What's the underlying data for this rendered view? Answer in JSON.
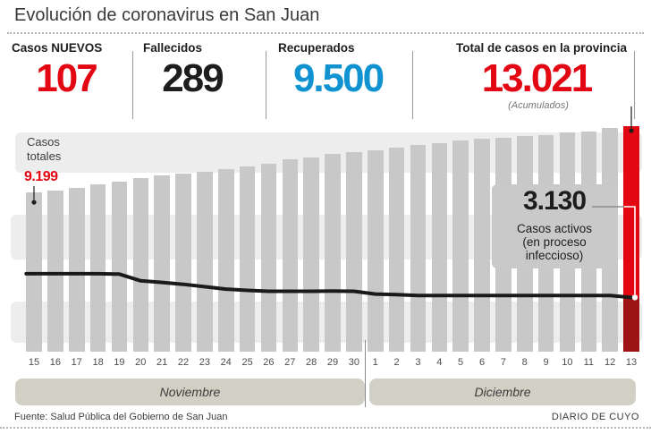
{
  "title": "Evolución de coronavirus en San Juan",
  "colors": {
    "accent_red": "#e30613",
    "dark_red": "#9e1315",
    "accent_blue": "#1193d2",
    "bar_gray": "#c8c8c8",
    "line_black": "#1a1a1a",
    "stripe_gray": "#ededed",
    "band_beige": "#d2cfc5",
    "text_dark": "#1d1d1b"
  },
  "stats": [
    {
      "label": "Casos NUEVOS",
      "value": "107",
      "color": "#e30613"
    },
    {
      "label": "Fallecidos",
      "value": "289",
      "color": "#1d1d1b"
    },
    {
      "label": "Recuperados",
      "value": "9.500",
      "color": "#1193d2"
    },
    {
      "label": "Total de casos en la provincia",
      "value": "13.021",
      "note": "(Acumulados)",
      "color": "#e30613"
    }
  ],
  "chart": {
    "totales_label": "Casos\ntotales",
    "totales_value": "9.199",
    "activos_value": "3.130",
    "activos_caption": "Casos activos\n(en proceso\ninfeccioso)"
  },
  "chart_data": {
    "type": "bar",
    "title": "Evolución de coronavirus en San Juan",
    "categories": [
      "15",
      "16",
      "17",
      "18",
      "19",
      "20",
      "21",
      "22",
      "23",
      "24",
      "25",
      "26",
      "27",
      "28",
      "29",
      "30",
      "1",
      "2",
      "3",
      "4",
      "5",
      "6",
      "7",
      "8",
      "9",
      "10",
      "11",
      "12",
      "13"
    ],
    "month_groups": [
      {
        "label": "Noviembre",
        "count": 16
      },
      {
        "label": "Diciembre",
        "count": 13
      }
    ],
    "series": [
      {
        "name": "Casos totales (acumulados)",
        "type": "bar",
        "color": "#c8c8c8",
        "last_bar_color": "#e30613",
        "values": [
          9199,
          9310,
          9480,
          9660,
          9840,
          10020,
          10160,
          10270,
          10380,
          10520,
          10690,
          10860,
          11100,
          11230,
          11400,
          11530,
          11640,
          11800,
          11920,
          12060,
          12180,
          12280,
          12340,
          12430,
          12520,
          12640,
          12730,
          12914,
          13021
        ]
      },
      {
        "name": "Casos activos (en proceso infeccioso)",
        "type": "line",
        "color": "#1a1a1a",
        "values": [
          4500,
          4500,
          4500,
          4500,
          4480,
          4090,
          4000,
          3890,
          3750,
          3610,
          3540,
          3490,
          3490,
          3490,
          3500,
          3490,
          3330,
          3290,
          3240,
          3240,
          3240,
          3240,
          3240,
          3240,
          3240,
          3240,
          3240,
          3240,
          3130
        ]
      }
    ],
    "first_total_label": "9.199",
    "last_total_label": "13.021",
    "last_active_label": "3.130",
    "ylim": [
      0,
      13021
    ],
    "grid": "off",
    "legend": "none"
  },
  "footer": {
    "source": "Fuente: Salud Pública del Gobierno de San Juan",
    "credit": "DIARIO DE CUYO"
  }
}
